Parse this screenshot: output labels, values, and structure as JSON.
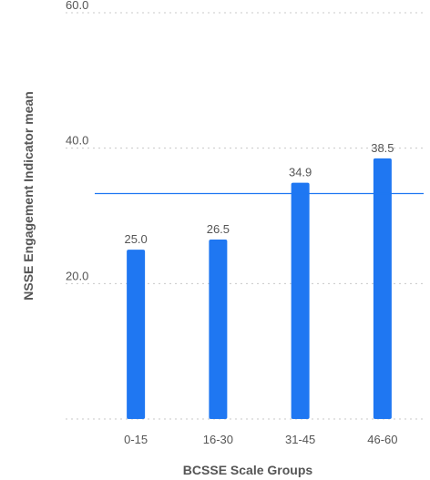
{
  "chart_data": {
    "type": "bar",
    "title": "",
    "xlabel": "BCSSE Scale Groups",
    "ylabel": "NSSE Engagement Indicator mean",
    "categories": [
      "0-15",
      "16-30",
      "31-45",
      "46-60"
    ],
    "values": [
      25.0,
      26.5,
      34.9,
      38.5
    ],
    "value_labels": [
      "25.0",
      "26.5",
      "34.9",
      "38.5"
    ],
    "ylim": [
      0,
      60
    ],
    "yticks": [
      20,
      40,
      60
    ],
    "ytick_labels": [
      "20.0",
      "40.0",
      "60.0"
    ],
    "reference_line": 33.3,
    "grid": true,
    "bar_color": "#1f77f2",
    "reference_line_color": "#1f77f2"
  }
}
